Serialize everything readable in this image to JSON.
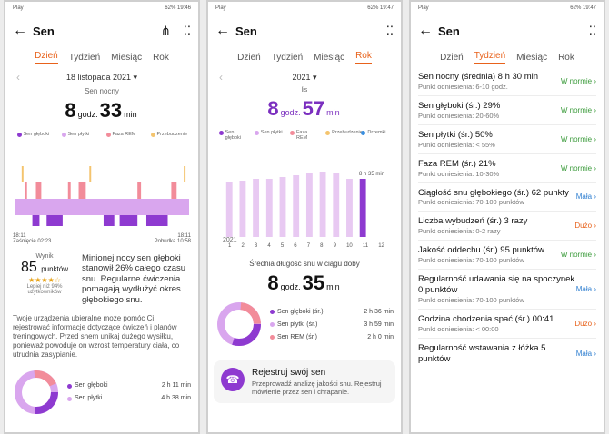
{
  "status": {
    "left": "Play",
    "right": "62%",
    "time1": "19:46",
    "time2": "19:47",
    "time3": "19:47"
  },
  "title": "Sen",
  "tabs": [
    "Dzień",
    "Tydzień",
    "Miesiąc",
    "Rok"
  ],
  "p1": {
    "date": "18 listopada 2021",
    "sub": "Sen nocny",
    "hours": "8",
    "hours_unit": "godz.",
    "mins": "33",
    "mins_unit": "min",
    "legend": [
      "Sen głęboki",
      "Sen płytki",
      "Faza REM",
      "Przebudzenie"
    ],
    "start_time": "18:11",
    "start_label": "Zaśnięcie 02:23",
    "end_time": "18:11",
    "end_label": "Pobudka 10:58",
    "score_label": "Wynik",
    "score": "85",
    "score_unit": "punktów",
    "stars": "★★★★☆",
    "score_note": "Lepiej niż 94% użytkowników",
    "score_text": "Minionej nocy sen głęboki stanowił 26% całego czasu snu. Regularne ćwiczenia pomagają wydłużyć okres głębokiego snu.",
    "para": "Twoje urządzenia ubieralne może pomóc Ci rejestrować informacje dotyczące ćwiczeń i planów treningowych. Przed snem unikaj dużego wysiłku, ponieważ powoduje on wzrost temperatury ciała, co utrudnia zasypianie.",
    "rows": [
      {
        "label": "Sen głęboki",
        "val": "2 h 11 min"
      },
      {
        "label": "Sen płytki",
        "val": "4 h 38 min"
      }
    ]
  },
  "p2": {
    "year": "2021",
    "month": "lis",
    "hours": "8",
    "hours_unit": "godz.",
    "mins": "57",
    "mins_unit": "min",
    "legend": [
      "Sen głęboki",
      "Sen płytki",
      "Faza REM",
      "Przebudzenie",
      "Drzemki"
    ],
    "tooltip": "8 h 35 min",
    "year_axis": "2021",
    "x_ticks": [
      "1",
      "2",
      "3",
      "4",
      "5",
      "6",
      "7",
      "8",
      "9",
      "10",
      "11",
      "12"
    ],
    "avg_label": "Średnia długość snu w ciągu doby",
    "avg_hours": "8",
    "avg_mins": "35",
    "rows": [
      {
        "label": "Sen głęboki (śr.)",
        "val": "2 h 36 min"
      },
      {
        "label": "Sen płytki (śr.)",
        "val": "3 h 59 min"
      },
      {
        "label": "Sen REM (śr.)",
        "val": "2 h 0 min"
      }
    ],
    "card_title": "Rejestruj swój sen",
    "card_desc": "Przeprowadź analizę jakości snu. Rejestruj mówienie przez sen i chrapanie."
  },
  "p3": {
    "items": [
      {
        "m": "Sen nocny (średnia)  8 h 30 min",
        "rf": "Punkt odniesienia: 6-10 godz.",
        "st": "W normie",
        "cls": "ok"
      },
      {
        "m": "Sen głęboki (śr.)  29%",
        "rf": "Punkt odniesienia: 20-60%",
        "st": "W normie",
        "cls": "ok"
      },
      {
        "m": "Sen płytki (śr.)  50%",
        "rf": "Punkt odniesienia: < 55%",
        "st": "W normie",
        "cls": "ok"
      },
      {
        "m": "Faza REM (śr.)  21%",
        "rf": "Punkt odniesienia: 10-30%",
        "st": "W normie",
        "cls": "ok"
      },
      {
        "m": "Ciągłość snu głębokiego (śr.)  62 punkty",
        "rf": "Punkt odniesienia: 70-100 punktów",
        "st": "Mała",
        "cls": "low"
      },
      {
        "m": "Liczba wybudzeń (śr.)  3 razy",
        "rf": "Punkt odniesienia: 0-2 razy",
        "st": "Dużo",
        "cls": "high"
      },
      {
        "m": "Jakość oddechu (śr.)  95 punktów",
        "rf": "Punkt odniesienia: 70-100 punktów",
        "st": "W normie",
        "cls": "ok"
      },
      {
        "m": "Regularność udawania się na spoczynek  0 punktów",
        "rf": "Punkt odniesienia: 70-100 punktów",
        "st": "Mała",
        "cls": "low"
      },
      {
        "m": "Godzina chodzenia spać (śr.)  00:41",
        "rf": "Punkt odniesienia: < 00:00",
        "st": "Dużo",
        "cls": "high"
      },
      {
        "m": "Regularność wstawania z łóżka  5 punktów",
        "rf": "",
        "st": "Mała",
        "cls": "low"
      }
    ]
  },
  "colors": {
    "deep": "#8e3ad0",
    "light": "#d9a6ee",
    "rem": "#f28c9a",
    "awake": "#f4c46e",
    "nap": "#3a8fe0",
    "accent": "#e8621b"
  }
}
